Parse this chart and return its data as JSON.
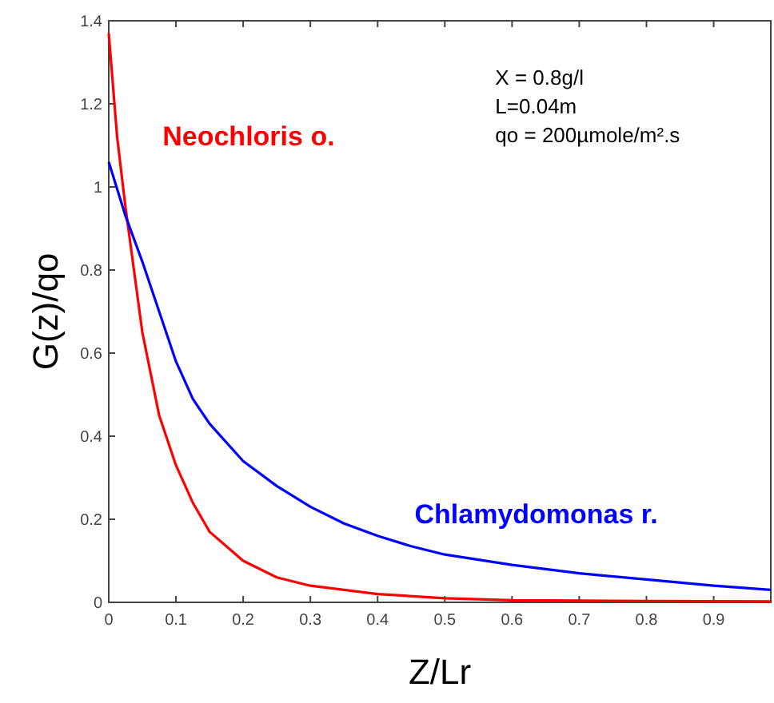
{
  "chart_data": {
    "type": "line",
    "xlabel": "Z/Lr",
    "ylabel": "G(z)/qo",
    "xlim": [
      0,
      0.985
    ],
    "xticks": [
      0,
      0.1,
      0.2,
      0.3,
      0.4,
      0.5,
      0.6,
      0.7,
      0.8,
      0.9
    ],
    "ylim": [
      0,
      1.4
    ],
    "yticks": [
      0,
      0.2,
      0.4,
      0.6,
      0.8,
      1,
      1.2,
      1.4
    ],
    "grid": false,
    "marker": "none",
    "line_style": "solid",
    "annotations": [
      "X = 0.8g/l",
      "L=0.04m",
      "qo = 200µmole/m².s"
    ],
    "series": [
      {
        "name": "Neochloris o.",
        "color": "#ff0000",
        "x": [
          0,
          0.0125,
          0.025,
          0.05,
          0.075,
          0.1,
          0.125,
          0.15,
          0.2,
          0.25,
          0.3,
          0.4,
          0.5,
          0.6,
          0.8,
          0.985
        ],
        "values": [
          1.37,
          1.12,
          0.95,
          0.65,
          0.45,
          0.33,
          0.24,
          0.17,
          0.1,
          0.06,
          0.04,
          0.02,
          0.01,
          0.005,
          0.003,
          0.002
        ]
      },
      {
        "name": "Chlamydomonas r.",
        "color": "#0000ff",
        "x": [
          0,
          0.025,
          0.05,
          0.075,
          0.1,
          0.125,
          0.15,
          0.2,
          0.25,
          0.3,
          0.35,
          0.4,
          0.45,
          0.5,
          0.6,
          0.7,
          0.8,
          0.9,
          0.985
        ],
        "values": [
          1.06,
          0.93,
          0.82,
          0.7,
          0.58,
          0.49,
          0.43,
          0.34,
          0.28,
          0.23,
          0.19,
          0.16,
          0.135,
          0.115,
          0.09,
          0.07,
          0.055,
          0.04,
          0.03
        ]
      }
    ]
  }
}
